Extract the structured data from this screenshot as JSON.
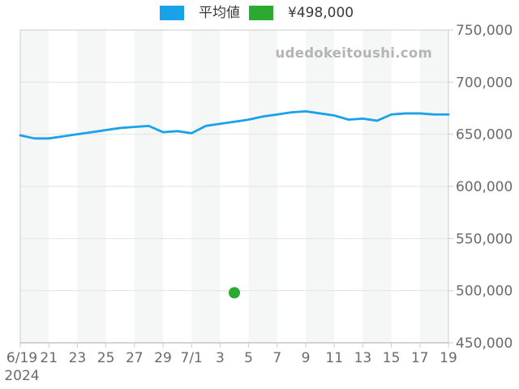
{
  "legend": {
    "avg_label": "平均値",
    "price_label": "¥498,000"
  },
  "watermark": "udedokeitoushi.com",
  "colors": {
    "line": "#19a2e9",
    "dot": "#2ca930",
    "grid": "#e3e3e3",
    "band": "#f5f6f6",
    "border": "#cccccc",
    "axis_line": "#aaaaaa",
    "tick": "#cccccc",
    "axis_text": "#6a6a6a",
    "legend_text": "#3a3a3a",
    "watermark": "#b4b4b4"
  },
  "chart_data": {
    "type": "line",
    "title": "",
    "xlabel": "",
    "ylabel": "",
    "year_label": "2024",
    "grid": "horizontal",
    "legend_position": "top",
    "ylim": [
      450000,
      750000
    ],
    "y_ticks": [
      450000,
      500000,
      550000,
      600000,
      650000,
      700000,
      750000
    ],
    "y_tick_labels": [
      "450,000",
      "500,000",
      "550,000",
      "600,000",
      "650,000",
      "700,000",
      "750,000"
    ],
    "x_days_total": 30,
    "x_tick_days": [
      0,
      2,
      4,
      6,
      8,
      10,
      12,
      14,
      16,
      18,
      20,
      22,
      24,
      26,
      28,
      30
    ],
    "x_tick_labels": [
      "6/19",
      "21",
      "23",
      "25",
      "27",
      "29",
      "7/1",
      "3",
      "5",
      "7",
      "9",
      "11",
      "13",
      "15",
      "17",
      "19"
    ],
    "series": [
      {
        "name": "平均値",
        "type": "line",
        "color": "#19a2e9",
        "values": [
          649000,
          646000,
          646000,
          648000,
          650000,
          652000,
          654000,
          656000,
          657000,
          658000,
          652000,
          653000,
          651000,
          658000,
          660000,
          662000,
          664000,
          667000,
          669000,
          671000,
          672000,
          670000,
          668000,
          664000,
          665000,
          663000,
          669000,
          670000,
          670000,
          669000,
          669000
        ]
      },
      {
        "name": "¥498,000",
        "type": "scatter",
        "color": "#2ca930",
        "points": [
          {
            "day": 15,
            "date": "7/4",
            "value": 498000
          }
        ]
      }
    ]
  }
}
